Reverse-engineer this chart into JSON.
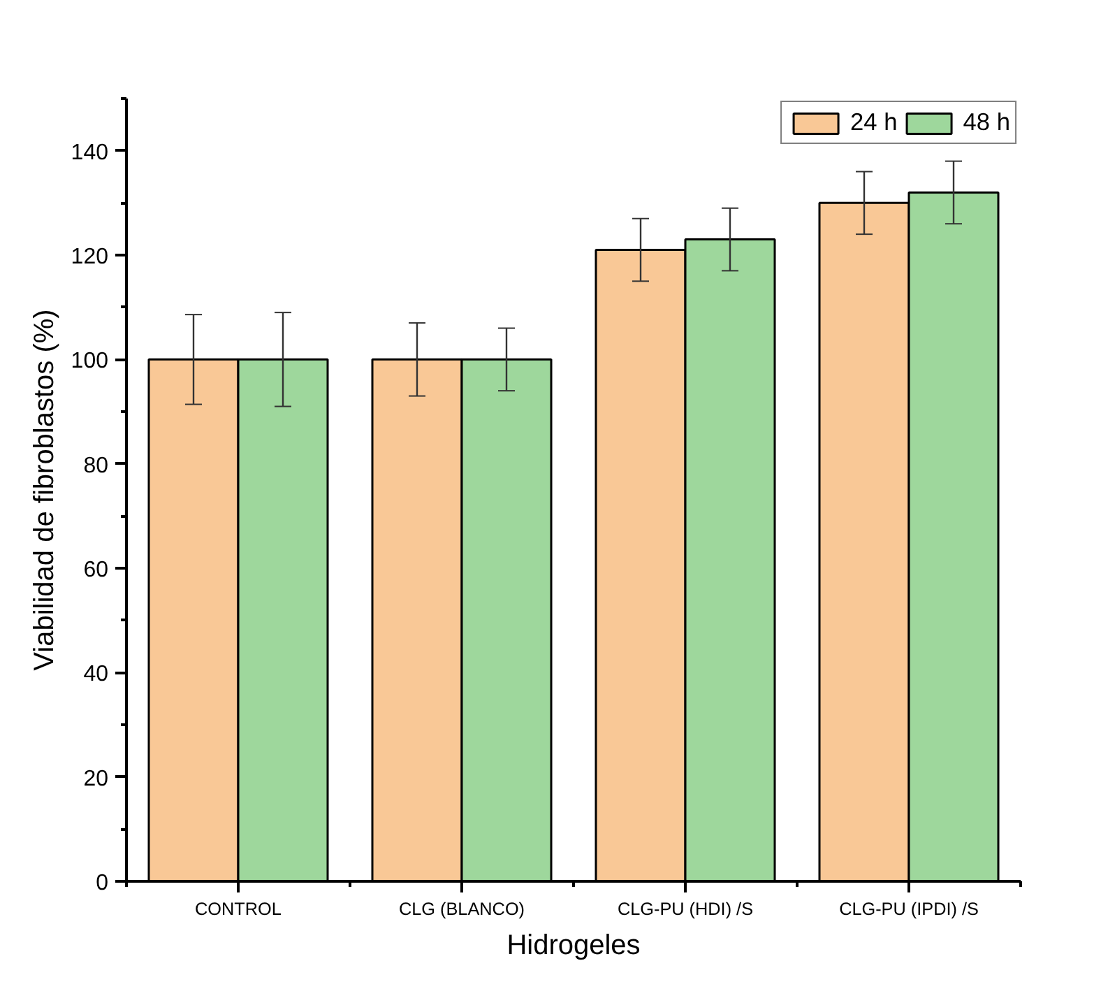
{
  "chart_data": {
    "type": "bar",
    "xlabel": "Hidrogeles",
    "ylabel": "Viabilidad de fibroblastos (%)",
    "categories": [
      "CONTROL",
      "CLG (BLANCO)",
      "CLG-PU (HDI) /S",
      "CLG-PU (IPDI) /S"
    ],
    "series": [
      {
        "name": "24 h",
        "color": "#f9c896",
        "values": [
          100,
          100,
          121,
          130
        ],
        "errors": [
          8.6,
          7,
          6,
          6
        ]
      },
      {
        "name": "48 h",
        "color": "#9ed79c",
        "values": [
          100,
          100,
          123,
          132
        ],
        "errors": [
          9,
          6,
          6,
          6
        ]
      }
    ],
    "ylim": [
      0,
      150
    ],
    "yticks": [
      0,
      20,
      40,
      60,
      80,
      100,
      120,
      140
    ],
    "grid": false,
    "legend": "top right"
  }
}
